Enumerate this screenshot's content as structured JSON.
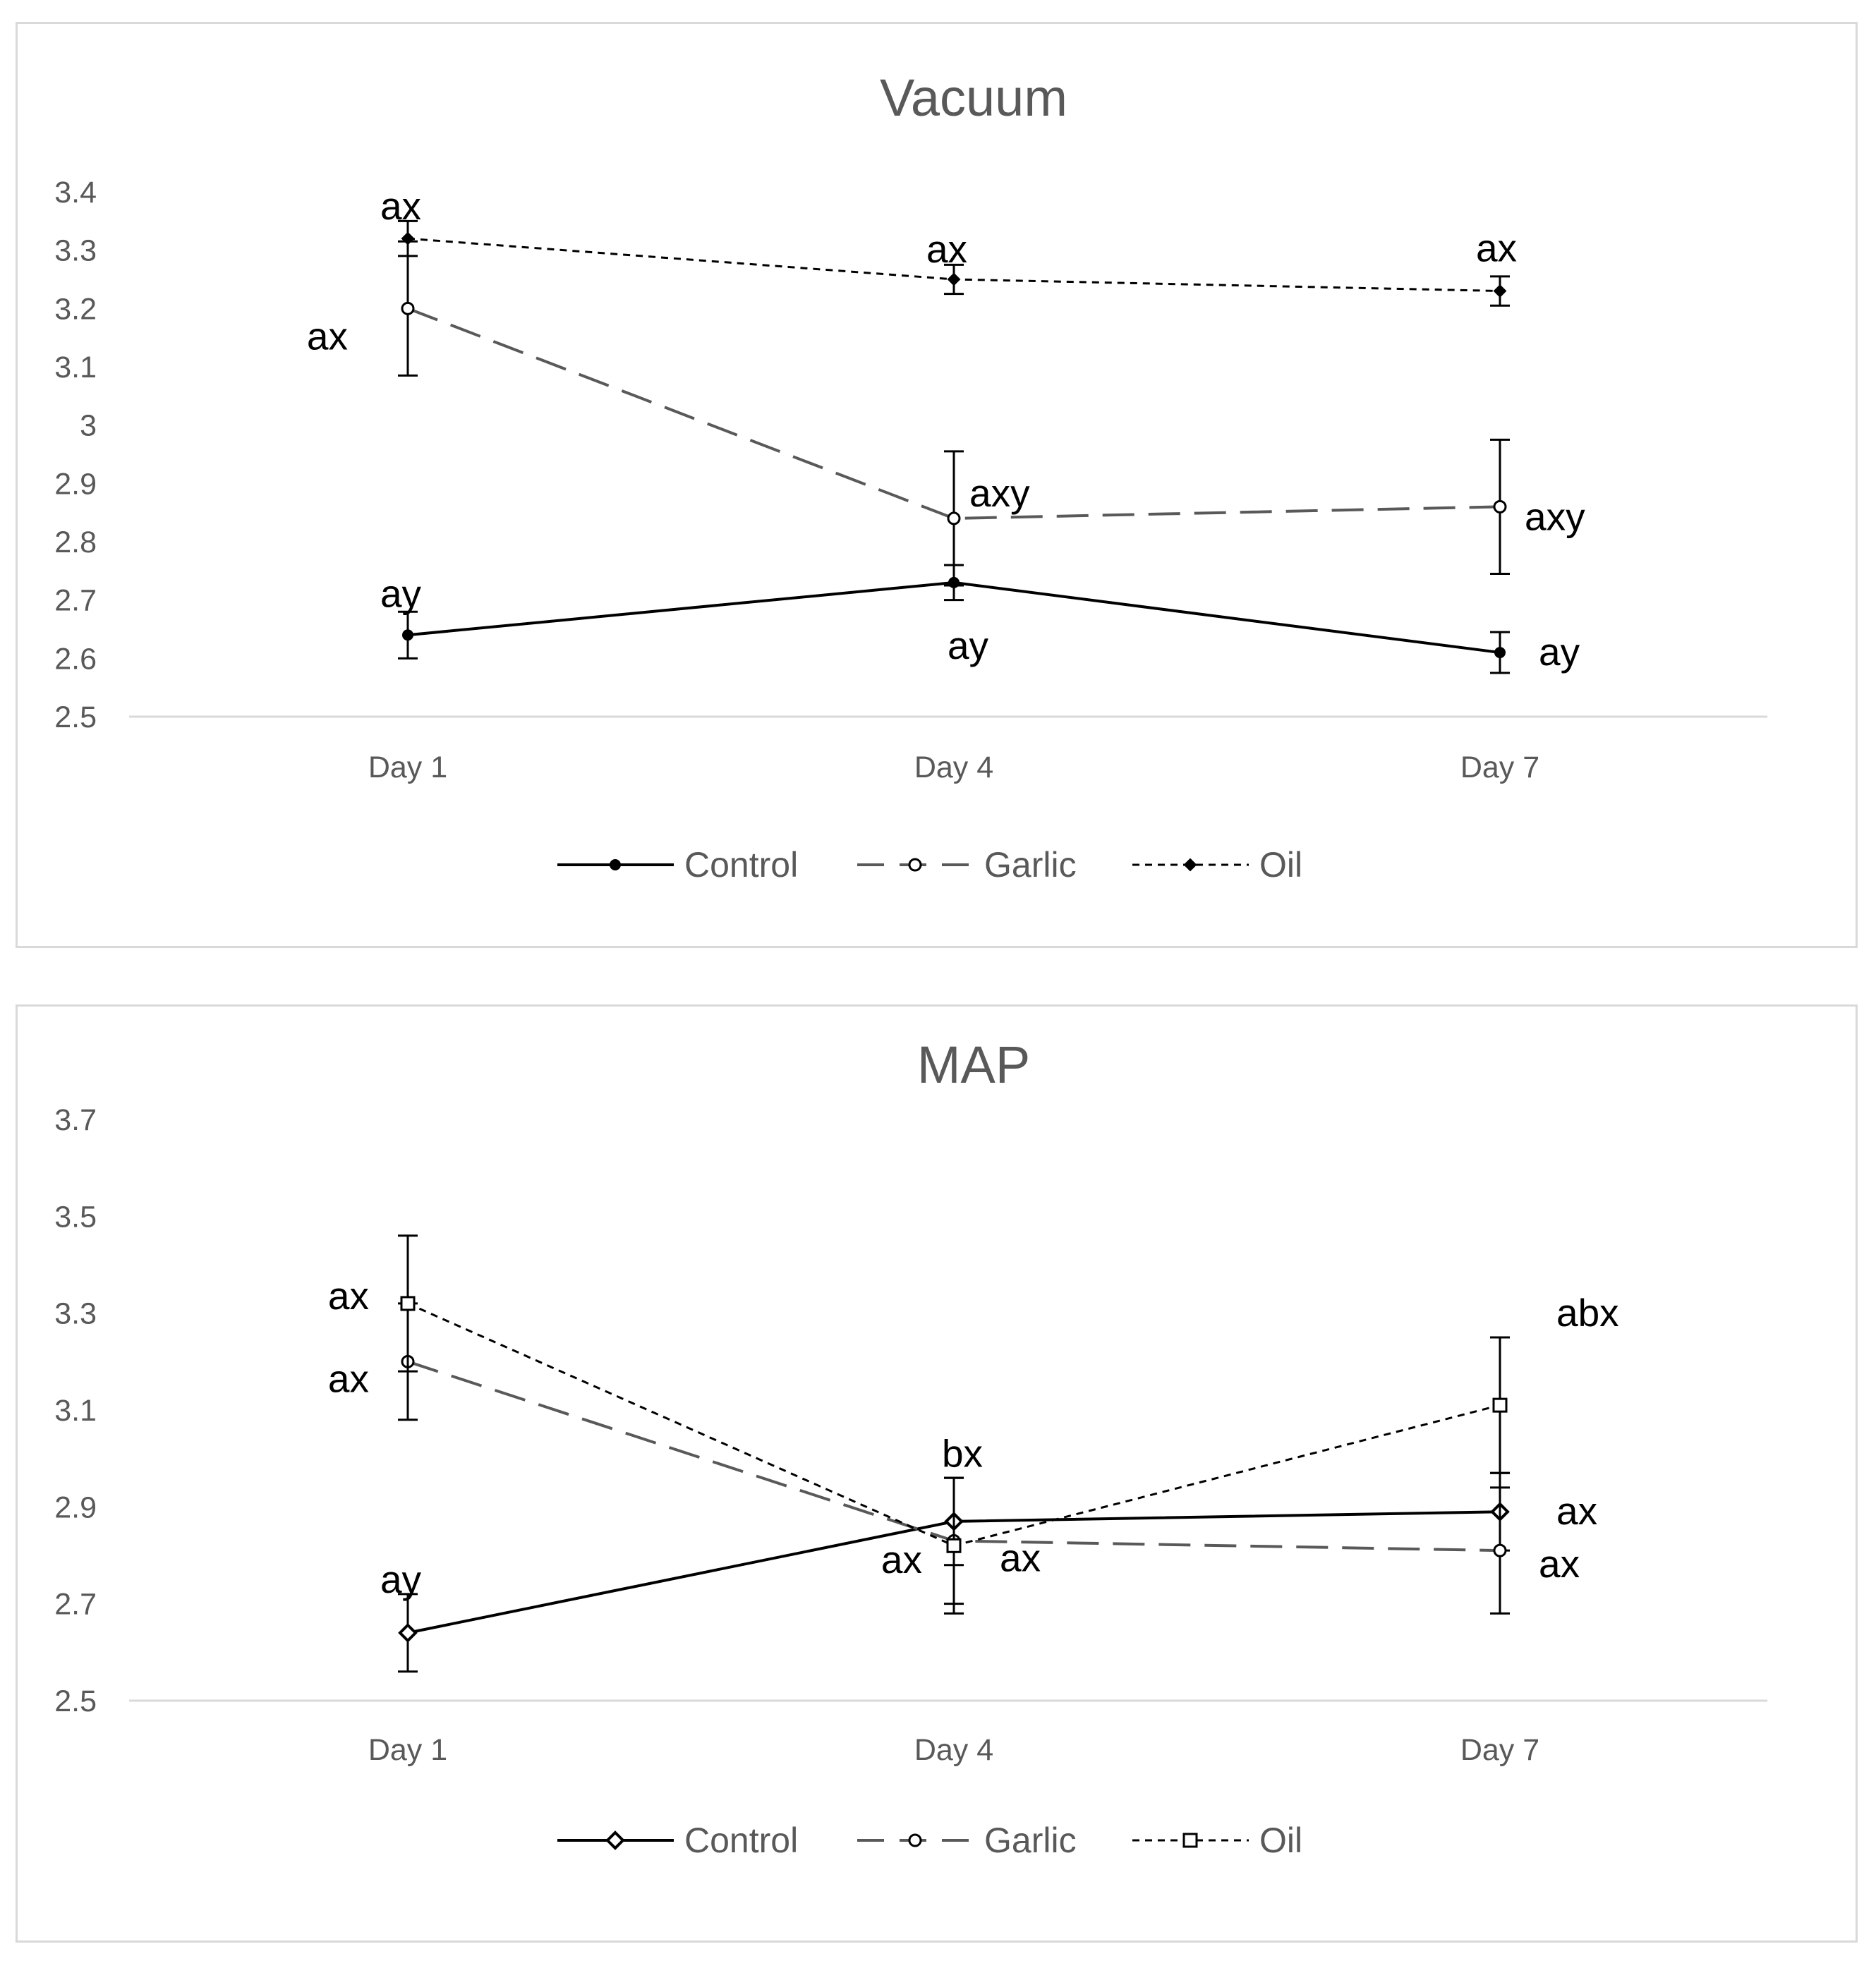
{
  "chart_data": [
    {
      "type": "line",
      "title": "Vacuum",
      "categories": [
        "Day 1",
        "Day 4",
        "Day 7"
      ],
      "ylim": [
        2.5,
        3.4
      ],
      "yticks": [
        2.5,
        2.6,
        2.7,
        2.8,
        2.9,
        3,
        3.1,
        3.2,
        3.3,
        3.4
      ],
      "xlabel": "",
      "ylabel": "",
      "grid": false,
      "legend": "bottom",
      "series": [
        {
          "name": "Control",
          "values": [
            2.64,
            2.73,
            2.61
          ],
          "errors": [
            0.04,
            0.03,
            0.035
          ],
          "labels": [
            "ay",
            "ay",
            "ay"
          ]
        },
        {
          "name": "Garlic",
          "values": [
            3.2,
            2.84,
            2.86
          ],
          "errors": [
            0.115,
            0.115,
            0.115
          ],
          "labels": [
            "ax",
            "axy",
            "axy"
          ]
        },
        {
          "name": "Oil",
          "values": [
            3.32,
            3.25,
            3.23
          ],
          "errors": [
            0.03,
            0.025,
            0.025
          ],
          "labels": [
            "ax",
            "ax",
            "ax"
          ]
        }
      ]
    },
    {
      "type": "line",
      "title": "MAP",
      "categories": [
        "Day 1",
        "Day 4",
        "Day 7"
      ],
      "ylim": [
        2.5,
        3.7
      ],
      "yticks": [
        2.5,
        2.7,
        2.9,
        3.1,
        3.3,
        3.5,
        3.7
      ],
      "xlabel": "",
      "ylabel": "",
      "grid": false,
      "legend": "bottom",
      "series": [
        {
          "name": "Control",
          "values": [
            2.64,
            2.87,
            2.89
          ],
          "errors": [
            0.08,
            0.09,
            0.08
          ],
          "labels": [
            "ay",
            "ax",
            "ax"
          ]
        },
        {
          "name": "Garlic",
          "values": [
            3.2,
            2.83,
            2.81
          ],
          "errors": [
            0.12,
            0.13,
            0.13
          ],
          "labels": [
            "ax",
            "ax",
            "ax"
          ]
        },
        {
          "name": "Oil",
          "values": [
            3.32,
            2.82,
            3.11
          ],
          "errors": [
            0.14,
            0.14,
            0.14
          ],
          "labels": [
            "ax",
            "bx",
            "abx"
          ]
        }
      ]
    }
  ]
}
